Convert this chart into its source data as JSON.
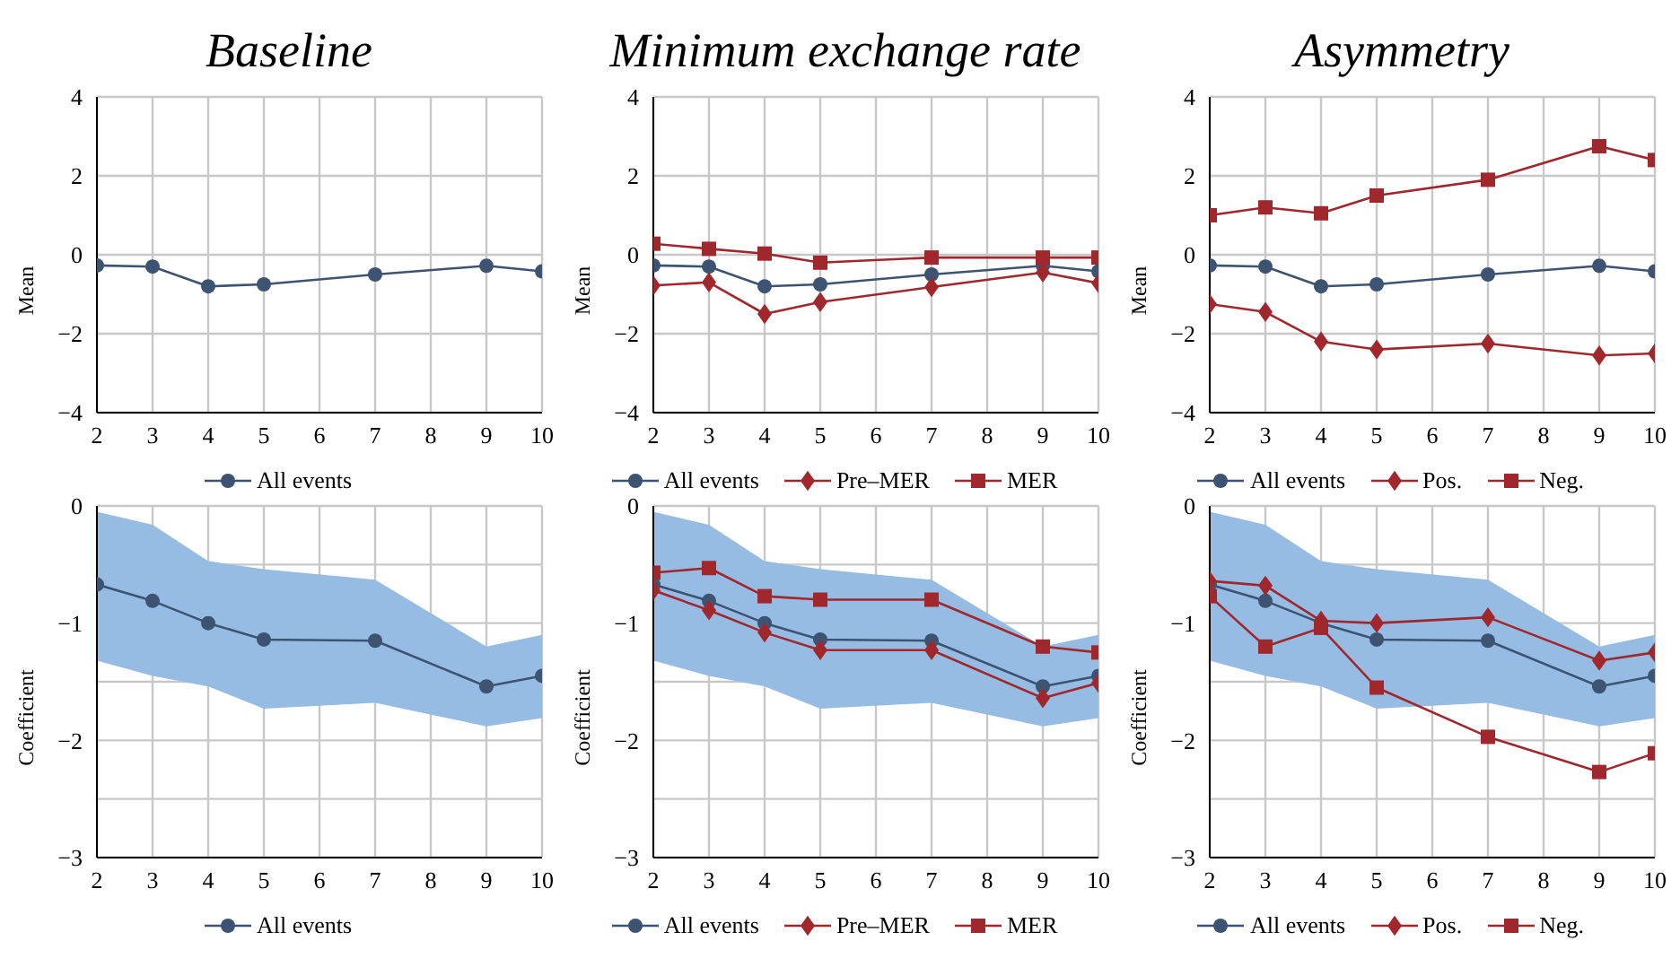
{
  "chart_data": [
    {
      "type": "line",
      "title": "Baseline",
      "ylabel": "Mean",
      "x": [
        2,
        3,
        4,
        5,
        7,
        9,
        10
      ],
      "xlim": [
        2,
        10
      ],
      "xticks": [
        2,
        3,
        4,
        5,
        6,
        7,
        8,
        9,
        10
      ],
      "ylim": [
        -4,
        4
      ],
      "yticks": [
        -4,
        -2,
        0,
        2,
        4
      ],
      "grid": true,
      "legend": "bottom",
      "series": [
        {
          "name": "All events",
          "color": "#3d5372",
          "marker": "circle",
          "values": [
            -0.27,
            -0.3,
            -0.8,
            -0.75,
            -0.5,
            -0.28,
            -0.42
          ]
        }
      ]
    },
    {
      "type": "line",
      "title": "Minimum exchange rate",
      "ylabel": "Mean",
      "x": [
        2,
        3,
        4,
        5,
        7,
        9,
        10
      ],
      "xlim": [
        2,
        10
      ],
      "xticks": [
        2,
        3,
        4,
        5,
        6,
        7,
        8,
        9,
        10
      ],
      "ylim": [
        -4,
        4
      ],
      "yticks": [
        -4,
        -2,
        0,
        2,
        4
      ],
      "grid": true,
      "legend": "bottom",
      "series": [
        {
          "name": "All events",
          "color": "#3d5372",
          "marker": "circle",
          "values": [
            -0.27,
            -0.3,
            -0.8,
            -0.75,
            -0.5,
            -0.28,
            -0.42
          ]
        },
        {
          "name": "Pre–MER",
          "color": "#a0282d",
          "marker": "diamond",
          "values": [
            -0.78,
            -0.7,
            -1.5,
            -1.2,
            -0.82,
            -0.45,
            -0.72
          ]
        },
        {
          "name": "MER",
          "color": "#a0282d",
          "marker": "square",
          "values": [
            0.28,
            0.15,
            0.03,
            -0.2,
            -0.07,
            -0.07,
            -0.07
          ]
        }
      ]
    },
    {
      "type": "line",
      "title": "Asymmetry",
      "ylabel": "Mean",
      "x": [
        2,
        3,
        4,
        5,
        7,
        9,
        10
      ],
      "xlim": [
        2,
        10
      ],
      "xticks": [
        2,
        3,
        4,
        5,
        6,
        7,
        8,
        9,
        10
      ],
      "ylim": [
        -4,
        4
      ],
      "yticks": [
        -4,
        -2,
        0,
        2,
        4
      ],
      "grid": true,
      "legend": "bottom",
      "series": [
        {
          "name": "All events",
          "color": "#3d5372",
          "marker": "circle",
          "values": [
            -0.27,
            -0.3,
            -0.8,
            -0.75,
            -0.5,
            -0.28,
            -0.42
          ]
        },
        {
          "name": "Pos.",
          "color": "#a0282d",
          "marker": "diamond",
          "values": [
            -1.25,
            -1.45,
            -2.2,
            -2.4,
            -2.25,
            -2.55,
            -2.5
          ]
        },
        {
          "name": "Neg.",
          "color": "#a0282d",
          "marker": "square",
          "values": [
            1.0,
            1.2,
            1.05,
            1.5,
            1.9,
            2.75,
            2.4
          ]
        }
      ]
    },
    {
      "type": "line",
      "ylabel": "Coefficient",
      "x": [
        2,
        3,
        4,
        5,
        7,
        9,
        10
      ],
      "xlim": [
        2,
        10
      ],
      "xticks": [
        2,
        3,
        4,
        5,
        6,
        7,
        8,
        9,
        10
      ],
      "ylim": [
        -3,
        0
      ],
      "yticks": [
        -3,
        {
          "value": -2.5,
          "label": null
        },
        -2,
        {
          "value": -1.5,
          "label": null
        },
        -1,
        {
          "value": -0.5,
          "label": null
        },
        0
      ],
      "grid": true,
      "legend": "bottom",
      "series": [
        {
          "name": "All events",
          "color": "#3d5372",
          "marker": "circle",
          "values": [
            -0.67,
            -0.81,
            -1.0,
            -1.14,
            -1.15,
            -1.54,
            -1.45
          ],
          "lower": [
            -1.32,
            -1.45,
            -1.54,
            -1.73,
            -1.68,
            -1.88,
            -1.81
          ],
          "upper": [
            -0.05,
            -0.16,
            -0.47,
            -0.54,
            -0.63,
            -1.2,
            -1.1
          ]
        }
      ]
    },
    {
      "type": "line",
      "ylabel": "Coefficient",
      "x": [
        2,
        3,
        4,
        5,
        7,
        9,
        10
      ],
      "xlim": [
        2,
        10
      ],
      "xticks": [
        2,
        3,
        4,
        5,
        6,
        7,
        8,
        9,
        10
      ],
      "ylim": [
        -3,
        0
      ],
      "yticks": [
        -3,
        {
          "value": -2.5,
          "label": null
        },
        -2,
        {
          "value": -1.5,
          "label": null
        },
        -1,
        {
          "value": -0.5,
          "label": null
        },
        0
      ],
      "grid": true,
      "legend": "bottom",
      "series": [
        {
          "name": "All events",
          "color": "#3d5372",
          "marker": "circle",
          "values": [
            -0.67,
            -0.81,
            -1.0,
            -1.14,
            -1.15,
            -1.54,
            -1.45
          ],
          "lower": [
            -1.32,
            -1.45,
            -1.54,
            -1.73,
            -1.68,
            -1.88,
            -1.81
          ],
          "upper": [
            -0.05,
            -0.16,
            -0.47,
            -0.54,
            -0.63,
            -1.2,
            -1.1
          ]
        },
        {
          "name": "Pre–MER",
          "color": "#a0282d",
          "marker": "diamond",
          "values": [
            -0.72,
            -0.89,
            -1.08,
            -1.23,
            -1.23,
            -1.64,
            -1.51
          ]
        },
        {
          "name": "MER",
          "color": "#a0282d",
          "marker": "square",
          "values": [
            -0.57,
            -0.53,
            -0.77,
            -0.8,
            -0.8,
            -1.2,
            -1.25
          ]
        }
      ]
    },
    {
      "type": "line",
      "ylabel": "Coefficient",
      "x": [
        2,
        3,
        4,
        5,
        7,
        9,
        10
      ],
      "xlim": [
        2,
        10
      ],
      "xticks": [
        2,
        3,
        4,
        5,
        6,
        7,
        8,
        9,
        10
      ],
      "ylim": [
        -3,
        0
      ],
      "yticks": [
        -3,
        {
          "value": -2.5,
          "label": null
        },
        -2,
        {
          "value": -1.5,
          "label": null
        },
        -1,
        {
          "value": -0.5,
          "label": null
        },
        0
      ],
      "grid": true,
      "legend": "bottom",
      "series": [
        {
          "name": "All events",
          "color": "#3d5372",
          "marker": "circle",
          "values": [
            -0.67,
            -0.81,
            -1.0,
            -1.14,
            -1.15,
            -1.54,
            -1.45
          ],
          "lower": [
            -1.32,
            -1.45,
            -1.54,
            -1.73,
            -1.68,
            -1.88,
            -1.81
          ],
          "upper": [
            -0.05,
            -0.16,
            -0.47,
            -0.54,
            -0.63,
            -1.2,
            -1.1
          ]
        },
        {
          "name": "Pos.",
          "color": "#a0282d",
          "marker": "diamond",
          "values": [
            -0.64,
            -0.68,
            -0.98,
            -1.0,
            -0.95,
            -1.32,
            -1.25
          ]
        },
        {
          "name": "Neg.",
          "color": "#a0282d",
          "marker": "square",
          "values": [
            -0.77,
            -1.2,
            -1.04,
            -1.55,
            -1.97,
            -2.27,
            -2.11
          ]
        }
      ]
    }
  ]
}
